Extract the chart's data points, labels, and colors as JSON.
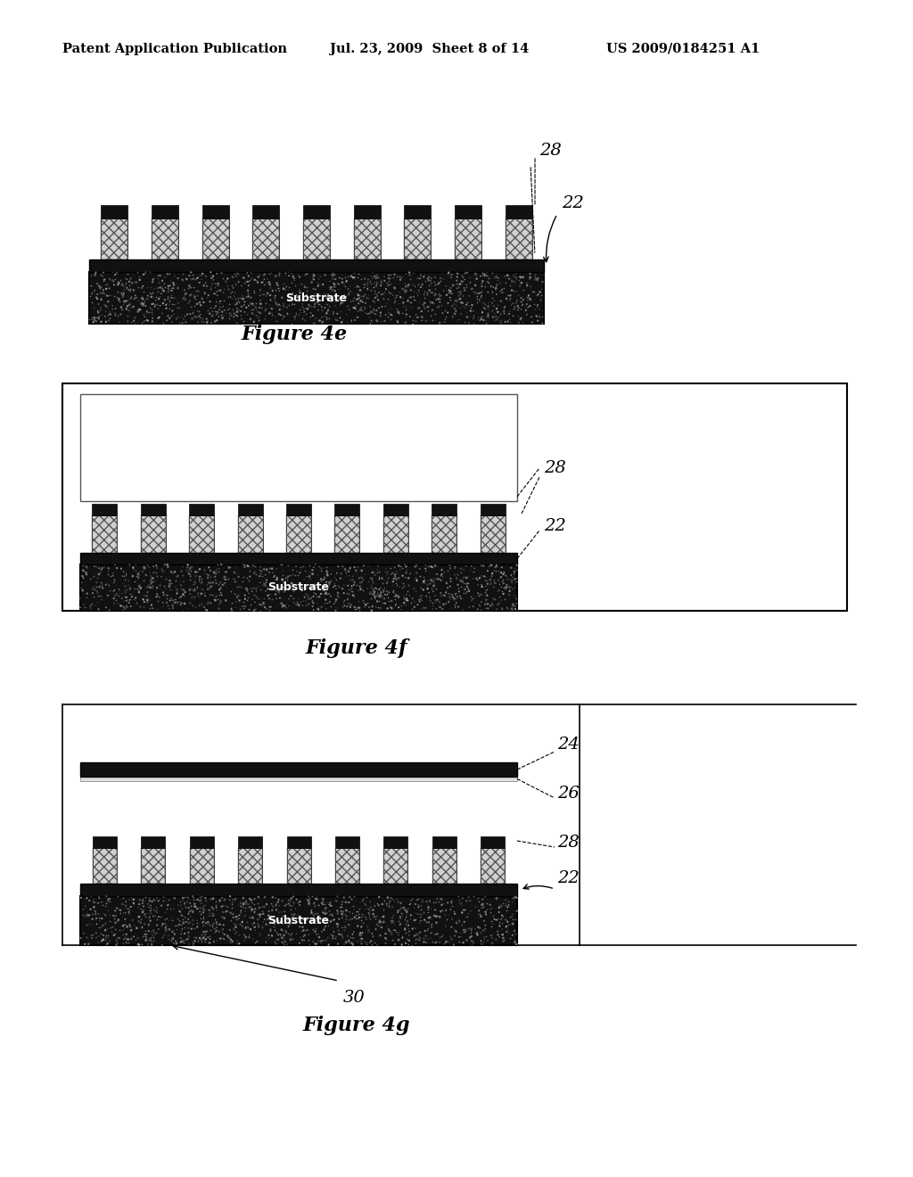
{
  "bg_color": "#ffffff",
  "header_left": "Patent Application Publication",
  "header_mid": "Jul. 23, 2009  Sheet 8 of 14",
  "header_right": "US 2009/0184251 A1",
  "fig4e_caption": "Figure 4e",
  "fig4f_caption": "Figure 4f",
  "fig4g_caption": "Figure 4g",
  "substrate_dark": "#111111",
  "black_layer": "#111111",
  "pillar_cap": "#111111",
  "pillar_body_light": "#cccccc",
  "pillar_body_dark": "#888888",
  "white": "#ffffff",
  "light_gray": "#e8e8e8",
  "border": "#000000"
}
